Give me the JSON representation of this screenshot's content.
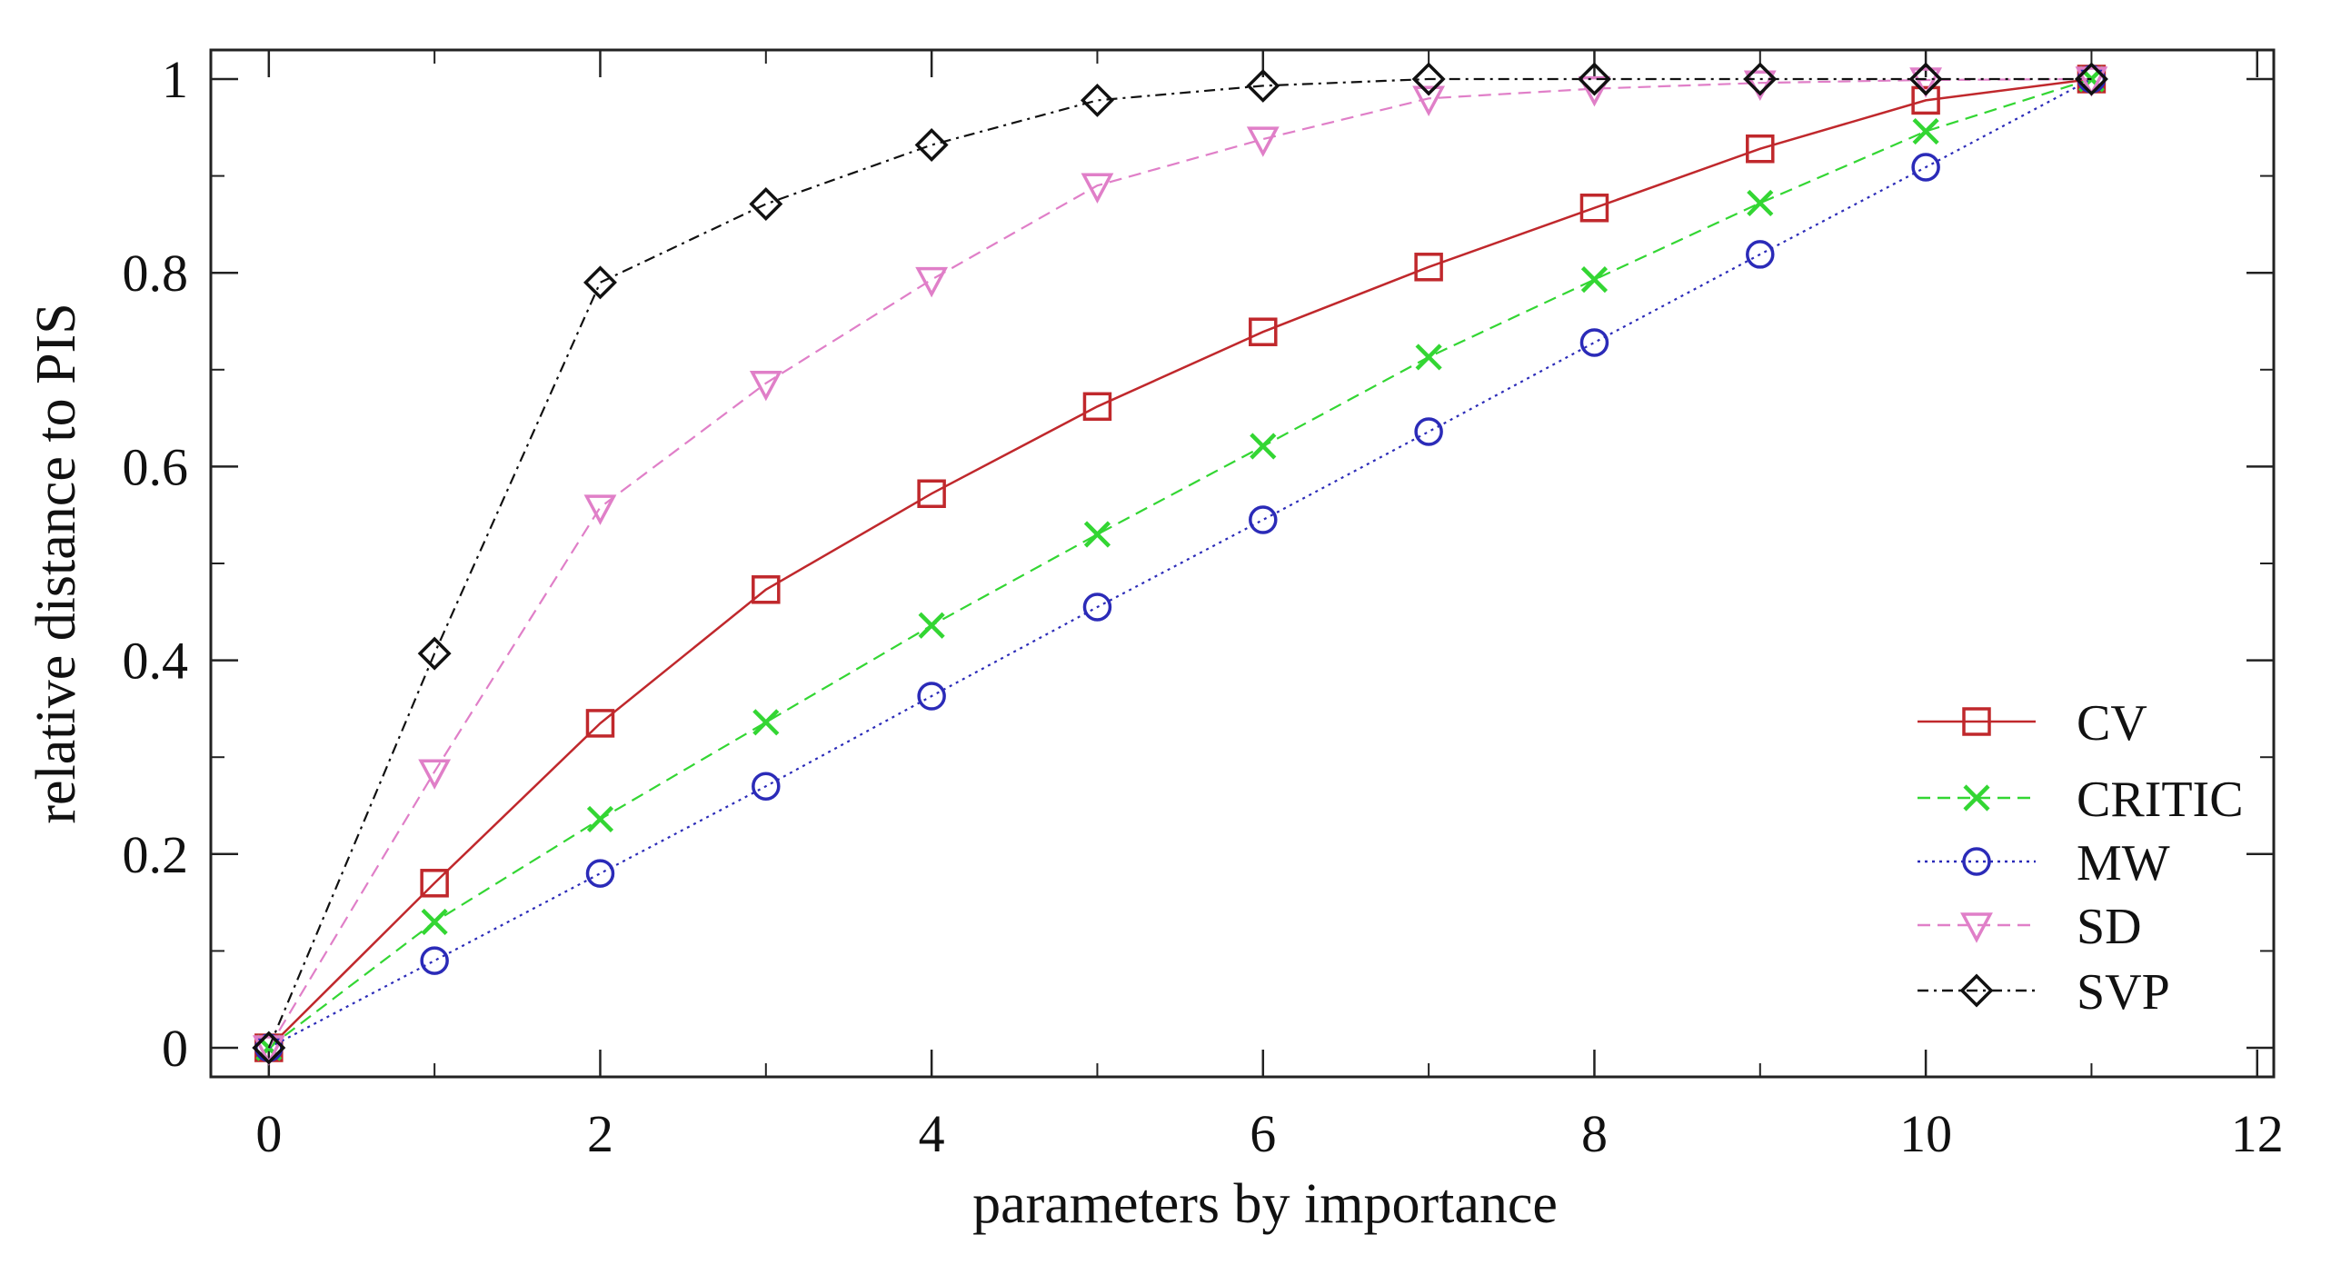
{
  "chart_data": {
    "type": "line",
    "title": "",
    "xlabel": "parameters by importance",
    "ylabel": "relative distance to PIS",
    "xlim": [
      -0.35,
      12.1
    ],
    "ylim": [
      -0.03,
      1.03
    ],
    "xticks": [
      0,
      2,
      4,
      6,
      8,
      10,
      12
    ],
    "yticks": [
      0,
      0.2,
      0.4,
      0.6,
      0.8,
      1
    ],
    "xtick_labels": [
      "0",
      "2",
      "4",
      "6",
      "8",
      "10",
      "12"
    ],
    "ytick_labels": [
      "0",
      "0.2",
      "0.4",
      "0.6",
      "0.8",
      "1"
    ],
    "grid": false,
    "legend_position": "bottom-right",
    "x": [
      0,
      1,
      2,
      3,
      4,
      5,
      6,
      7,
      8,
      9,
      10,
      11
    ],
    "series": [
      {
        "name": "CV",
        "color": "#c0282c",
        "marker": "square",
        "line": "solid",
        "values": [
          0,
          0.17,
          0.335,
          0.473,
          0.572,
          0.662,
          0.739,
          0.806,
          0.867,
          0.928,
          0.978,
          1.0
        ]
      },
      {
        "name": "CRITIC",
        "color": "#33d633",
        "marker": "x",
        "line": "dashed",
        "values": [
          0,
          0.13,
          0.236,
          0.336,
          0.436,
          0.53,
          0.621,
          0.713,
          0.793,
          0.872,
          0.946,
          1.0
        ]
      },
      {
        "name": "MW",
        "color": "#2b2bb8",
        "marker": "circle",
        "line": "dotted",
        "values": [
          0,
          0.09,
          0.18,
          0.27,
          0.363,
          0.455,
          0.545,
          0.636,
          0.728,
          0.819,
          0.909,
          1.0
        ]
      },
      {
        "name": "SD",
        "color": "#e07fc8",
        "marker": "triangle-down",
        "line": "dashed",
        "values": [
          0,
          0.285,
          0.558,
          0.686,
          0.793,
          0.89,
          0.938,
          0.98,
          0.99,
          0.996,
          0.999,
          1.0
        ]
      },
      {
        "name": "SVP",
        "color": "#111111",
        "marker": "diamond",
        "line": "dashdot",
        "values": [
          0,
          0.407,
          0.79,
          0.871,
          0.932,
          0.978,
          0.993,
          1.0,
          1.0,
          1.0,
          1.0,
          1.0
        ]
      }
    ]
  }
}
